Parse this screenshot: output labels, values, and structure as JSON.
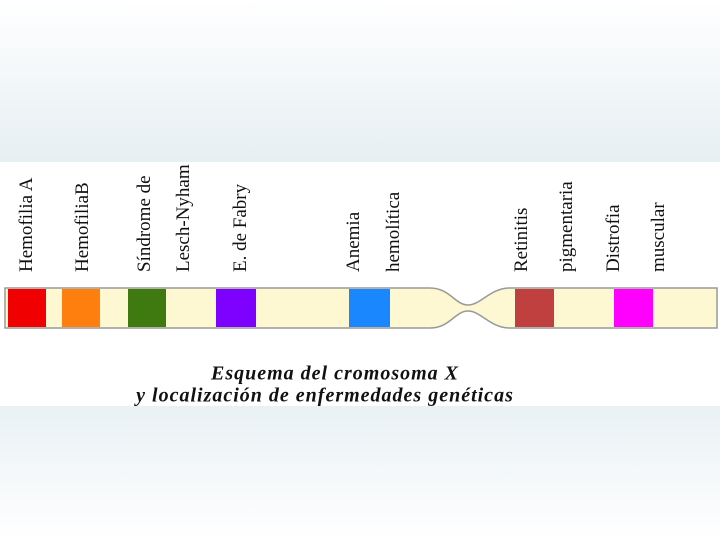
{
  "diseases": [
    {
      "lines": [
        "Hemofilia A"
      ]
    },
    {
      "lines": [
        "HemofiliaB"
      ]
    },
    {
      "lines": [
        "Síndrome de",
        "Lesch-Nyham"
      ]
    },
    {
      "lines": [
        "E. de Fabry"
      ]
    },
    {
      "lines": [
        "Anemia",
        "hemolítica"
      ]
    },
    {
      "lines": [
        "Retinitis",
        "pigmentaria"
      ]
    },
    {
      "lines": [
        "Distrofia",
        "muscular"
      ]
    }
  ],
  "caption": [
    "Esquema del cromosoma X",
    "y localización de enfermedades genéticas"
  ]
}
